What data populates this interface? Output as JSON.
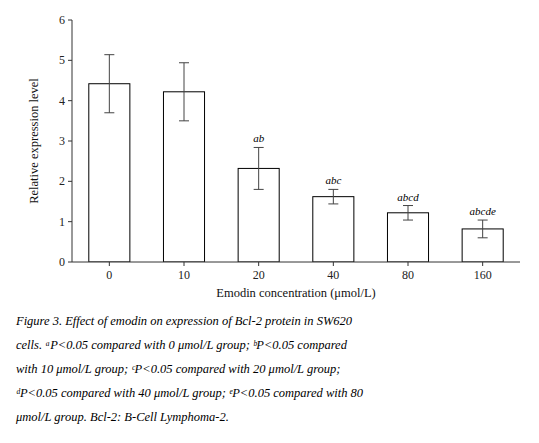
{
  "chart_data": {
    "type": "bar",
    "categories": [
      0,
      10,
      20,
      40,
      80,
      160
    ],
    "values": [
      4.42,
      4.22,
      2.32,
      1.62,
      1.22,
      0.82
    ],
    "errors": [
      0.72,
      0.72,
      0.52,
      0.18,
      0.18,
      0.22
    ],
    "annotations": [
      null,
      null,
      "ab",
      "abc",
      "abcd",
      "abcde"
    ],
    "xlabel": "Emodin concentration (μmol/L)",
    "ylabel": "Relative expression level",
    "ylim": [
      0,
      6
    ],
    "yticks": [
      0,
      1,
      2,
      3,
      4,
      5,
      6
    ],
    "color": "#ffffff",
    "grid": false,
    "caption": [
      "Figure 3. Effect of emodin on expression of Bcl-2 protein in SW620",
      "cells. ᵃP<0.05 compared with 0 μmol/L group; ᵇP<0.05 compared",
      "with 10 μmol/L group; ᶜP<0.05 compared with 20 μmol/L group;",
      "ᵈP<0.05 compared with 40 μmol/L group; ᵉP<0.05 compared with 80",
      "μmol/L group. Bcl-2: B-Cell Lymphoma-2."
    ]
  }
}
